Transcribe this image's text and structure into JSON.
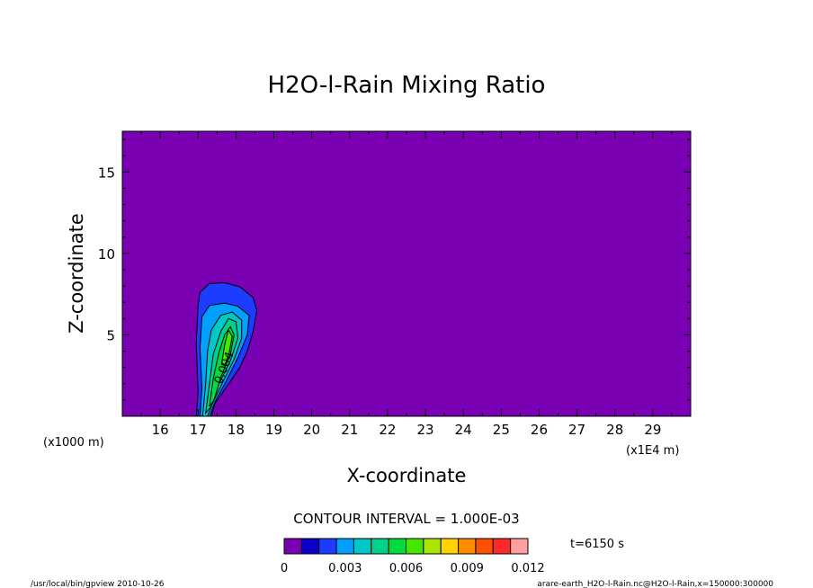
{
  "chart_data": {
    "type": "contour",
    "title": "H2O-l-Rain Mixing Ratio",
    "xlabel": "X-coordinate",
    "ylabel": "Z-coordinate",
    "x_unit_label": "(x1E4 m)",
    "y_unit_label": "(x1000 m)",
    "x_ticks": [
      16,
      17,
      18,
      19,
      20,
      21,
      22,
      23,
      24,
      25,
      26,
      27,
      28,
      29
    ],
    "y_ticks": [
      5,
      10,
      15
    ],
    "xlim": [
      15,
      30
    ],
    "ylim": [
      0,
      17.5
    ],
    "background_color": "#7a00b4",
    "contour_interval_text": "CONTOUR INTERVAL = 1.000E-03",
    "contour_levels": [
      {
        "level": 0.001,
        "color": "#1e3cff",
        "points": [
          [
            16.95,
            0
          ],
          [
            17.0,
            1.5
          ],
          [
            16.95,
            4.5
          ],
          [
            17.0,
            6.8
          ],
          [
            17.05,
            7.6
          ],
          [
            17.3,
            8.15
          ],
          [
            17.7,
            8.2
          ],
          [
            18.1,
            7.95
          ],
          [
            18.45,
            7.3
          ],
          [
            18.55,
            6.5
          ],
          [
            18.45,
            5.2
          ],
          [
            18.3,
            4.0
          ],
          [
            18.1,
            3.0
          ],
          [
            17.75,
            1.8
          ],
          [
            17.45,
            0.8
          ],
          [
            17.35,
            0
          ]
        ]
      },
      {
        "level": 0.002,
        "color": "#00a0ff",
        "points": [
          [
            17.05,
            0
          ],
          [
            17.1,
            1.8
          ],
          [
            17.05,
            4.2
          ],
          [
            17.1,
            6.1
          ],
          [
            17.3,
            6.8
          ],
          [
            17.7,
            6.95
          ],
          [
            18.05,
            6.75
          ],
          [
            18.35,
            6.2
          ],
          [
            18.3,
            5.0
          ],
          [
            18.05,
            3.6
          ],
          [
            17.75,
            2.2
          ],
          [
            17.45,
            0.9
          ],
          [
            17.3,
            0
          ]
        ]
      },
      {
        "level": 0.003,
        "color": "#00c8c8",
        "points": [
          [
            17.12,
            0
          ],
          [
            17.2,
            2.0
          ],
          [
            17.25,
            4.0
          ],
          [
            17.35,
            5.3
          ],
          [
            17.6,
            6.2
          ],
          [
            17.9,
            6.4
          ],
          [
            18.15,
            5.9
          ],
          [
            18.15,
            4.8
          ],
          [
            17.95,
            3.5
          ],
          [
            17.65,
            2.1
          ],
          [
            17.4,
            0.9
          ],
          [
            17.25,
            0
          ]
        ]
      },
      {
        "level": 0.004,
        "color": "#00d28c",
        "points": [
          [
            17.2,
            0.2
          ],
          [
            17.3,
            2.0
          ],
          [
            17.4,
            3.8
          ],
          [
            17.6,
            5.2
          ],
          [
            17.8,
            6.0
          ],
          [
            18.0,
            5.8
          ],
          [
            18.05,
            4.8
          ],
          [
            17.85,
            3.4
          ],
          [
            17.55,
            2.0
          ],
          [
            17.35,
            0.6
          ]
        ]
      },
      {
        "level": 0.005,
        "color": "#00dc3c",
        "points": [
          [
            17.3,
            0.6
          ],
          [
            17.4,
            2.3
          ],
          [
            17.55,
            3.9
          ],
          [
            17.7,
            5.0
          ],
          [
            17.85,
            5.5
          ],
          [
            17.95,
            5.0
          ],
          [
            17.85,
            3.8
          ],
          [
            17.6,
            2.4
          ],
          [
            17.42,
            1.0
          ]
        ]
      },
      {
        "level": 0.006,
        "color": "#46e600",
        "points": [
          [
            17.62,
            3.2
          ],
          [
            17.7,
            4.4
          ],
          [
            17.8,
            5.3
          ],
          [
            17.9,
            4.9
          ],
          [
            17.82,
            3.9
          ],
          [
            17.7,
            3.1
          ]
        ]
      }
    ],
    "colorbar": {
      "colors": [
        "#7a00b4",
        "#0a00c8",
        "#1e3cff",
        "#00a0ff",
        "#00c8c8",
        "#00d28c",
        "#00dc3c",
        "#46e600",
        "#aae600",
        "#ffd200",
        "#ff8c00",
        "#ff5000",
        "#ff2828",
        "#ffa0a0"
      ],
      "labels": [
        "0",
        "0.003",
        "0.006",
        "0.009",
        "0.012"
      ]
    },
    "contour_label": "0.004"
  },
  "time_label": "t=6150 s",
  "footer_left": "/usr/local/bin/gpview  2010-10-26",
  "footer_right": "arare-earth_H2O-l-Rain.nc@H2O-l-Rain,x=150000:300000"
}
